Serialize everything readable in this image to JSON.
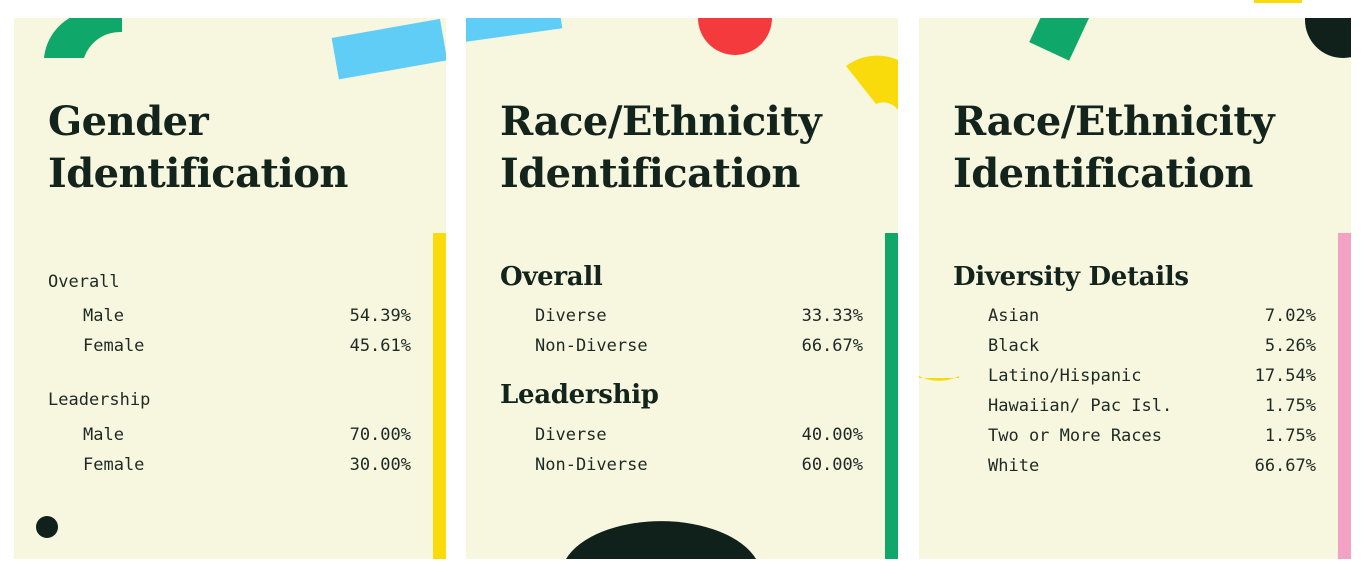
{
  "cards": [
    {
      "title_line1": "Gender",
      "title_line2": "Identification",
      "sections": [
        {
          "heading": "Overall",
          "rows": [
            {
              "label": "Male",
              "value": "54.39%"
            },
            {
              "label": "Female",
              "value": "45.61%"
            }
          ]
        },
        {
          "heading": "Leadership",
          "rows": [
            {
              "label": "Male",
              "value": "70.00%"
            },
            {
              "label": "Female",
              "value": "30.00%"
            }
          ]
        }
      ]
    },
    {
      "title_line1": "Race/Ethnicity",
      "title_line2": "Identification",
      "sections": [
        {
          "heading": "Overall",
          "rows": [
            {
              "label": "Diverse",
              "value": "33.33%"
            },
            {
              "label": "Non-Diverse",
              "value": "66.67%"
            }
          ]
        },
        {
          "heading": "Leadership",
          "rows": [
            {
              "label": "Diverse",
              "value": "40.00%"
            },
            {
              "label": "Non-Diverse",
              "value": "60.00%"
            }
          ]
        }
      ]
    },
    {
      "title_line1": "Race/Ethnicity",
      "title_line2": "Identification",
      "sections": [
        {
          "heading": "Diversity Details",
          "rows": [
            {
              "label": "Asian",
              "value": "7.02%"
            },
            {
              "label": "Black",
              "value": "5.26%"
            },
            {
              "label": "Latino/Hispanic",
              "value": "17.54%"
            },
            {
              "label": "Hawaiian/ Pac Isl.",
              "value": "1.75%"
            },
            {
              "label": "Two or More Races",
              "value": "1.75%"
            },
            {
              "label": "White",
              "value": "66.67%"
            }
          ]
        }
      ]
    }
  ],
  "colors": {
    "card_bg": "#f7f6df",
    "ink": "#13241d",
    "green": "#0fa86a",
    "blue": "#5fcdf5",
    "red": "#f43a3c",
    "yellow": "#f9da0a",
    "pink": "#f2a3c5",
    "dark": "#10201a"
  }
}
